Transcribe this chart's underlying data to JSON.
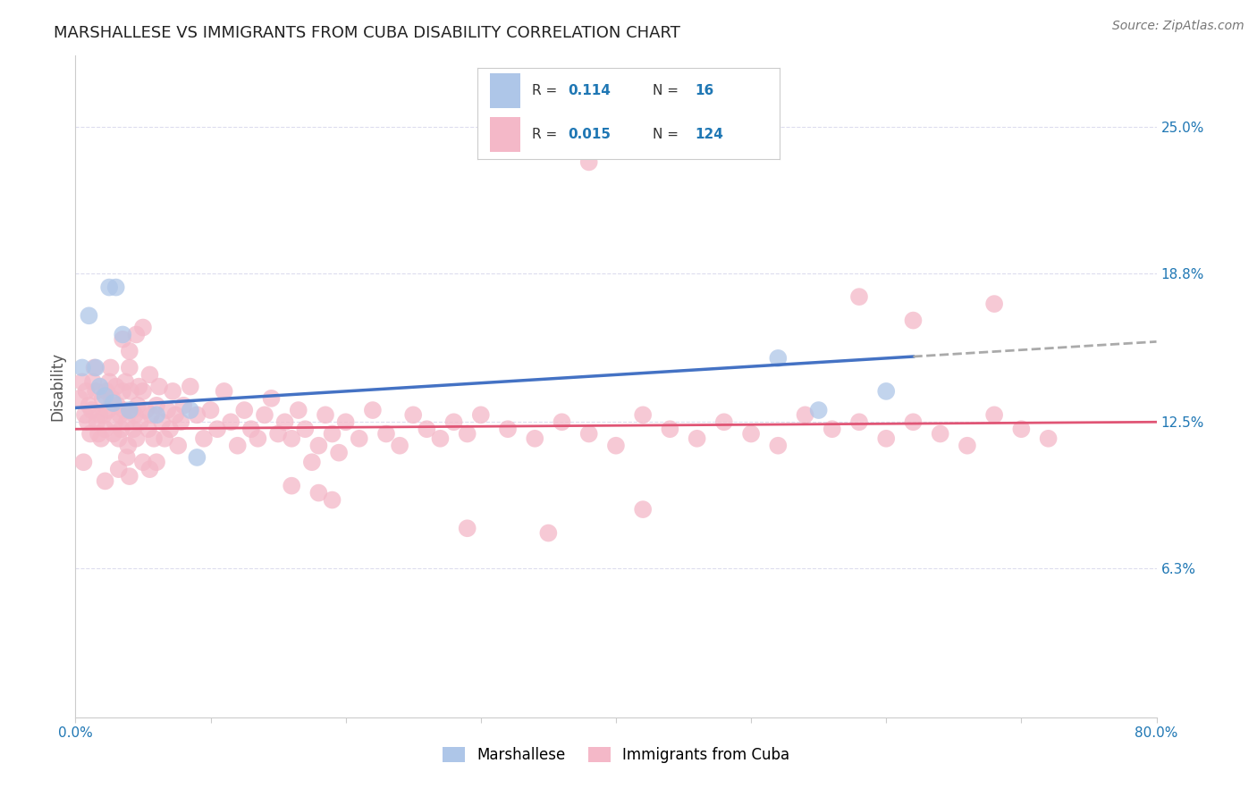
{
  "title": "MARSHALLESE VS IMMIGRANTS FROM CUBA DISABILITY CORRELATION CHART",
  "source": "Source: ZipAtlas.com",
  "ylabel": "Disability",
  "xlim": [
    0.0,
    0.8
  ],
  "ylim": [
    0.0,
    0.28
  ],
  "xticks": [
    0.0,
    0.1,
    0.2,
    0.3,
    0.4,
    0.5,
    0.6,
    0.7,
    0.8
  ],
  "ytick_positions": [
    0.063,
    0.125,
    0.188,
    0.25
  ],
  "ytick_labels": [
    "6.3%",
    "12.5%",
    "18.8%",
    "25.0%"
  ],
  "grid_color": "#ddddee",
  "background_color": "#ffffff",
  "marshallese_color": "#aec6e8",
  "cuba_color": "#f4b8c8",
  "blue_line_color": "#4472c4",
  "pink_line_color": "#e05575",
  "dash_line_color": "#aaaaaa",
  "accent_color": "#1f77b4",
  "marshallese_points": [
    [
      0.01,
      0.17
    ],
    [
      0.025,
      0.182
    ],
    [
      0.03,
      0.182
    ],
    [
      0.035,
      0.162
    ],
    [
      0.005,
      0.148
    ],
    [
      0.015,
      0.148
    ],
    [
      0.018,
      0.14
    ],
    [
      0.022,
      0.136
    ],
    [
      0.028,
      0.133
    ],
    [
      0.04,
      0.13
    ],
    [
      0.06,
      0.128
    ],
    [
      0.085,
      0.13
    ],
    [
      0.09,
      0.11
    ],
    [
      0.52,
      0.152
    ],
    [
      0.6,
      0.138
    ],
    [
      0.55,
      0.13
    ]
  ],
  "cuba_points": [
    [
      0.003,
      0.135
    ],
    [
      0.005,
      0.142
    ],
    [
      0.007,
      0.128
    ],
    [
      0.008,
      0.138
    ],
    [
      0.009,
      0.125
    ],
    [
      0.01,
      0.132
    ],
    [
      0.011,
      0.12
    ],
    [
      0.012,
      0.13
    ],
    [
      0.013,
      0.142
    ],
    [
      0.014,
      0.148
    ],
    [
      0.015,
      0.138
    ],
    [
      0.016,
      0.125
    ],
    [
      0.017,
      0.12
    ],
    [
      0.018,
      0.128
    ],
    [
      0.019,
      0.118
    ],
    [
      0.02,
      0.135
    ],
    [
      0.021,
      0.128
    ],
    [
      0.022,
      0.122
    ],
    [
      0.023,
      0.138
    ],
    [
      0.024,
      0.13
    ],
    [
      0.025,
      0.142
    ],
    [
      0.026,
      0.148
    ],
    [
      0.027,
      0.135
    ],
    [
      0.028,
      0.12
    ],
    [
      0.029,
      0.125
    ],
    [
      0.03,
      0.14
    ],
    [
      0.031,
      0.132
    ],
    [
      0.032,
      0.118
    ],
    [
      0.033,
      0.128
    ],
    [
      0.034,
      0.122
    ],
    [
      0.035,
      0.138
    ],
    [
      0.036,
      0.13
    ],
    [
      0.037,
      0.142
    ],
    [
      0.038,
      0.125
    ],
    [
      0.039,
      0.115
    ],
    [
      0.04,
      0.148
    ],
    [
      0.041,
      0.138
    ],
    [
      0.042,
      0.13
    ],
    [
      0.043,
      0.122
    ],
    [
      0.044,
      0.128
    ],
    [
      0.045,
      0.118
    ],
    [
      0.046,
      0.132
    ],
    [
      0.047,
      0.14
    ],
    [
      0.048,
      0.125
    ],
    [
      0.05,
      0.138
    ],
    [
      0.052,
      0.13
    ],
    [
      0.054,
      0.122
    ],
    [
      0.055,
      0.145
    ],
    [
      0.056,
      0.128
    ],
    [
      0.058,
      0.118
    ],
    [
      0.06,
      0.132
    ],
    [
      0.062,
      0.14
    ],
    [
      0.064,
      0.125
    ],
    [
      0.066,
      0.118
    ],
    [
      0.068,
      0.13
    ],
    [
      0.07,
      0.122
    ],
    [
      0.072,
      0.138
    ],
    [
      0.074,
      0.128
    ],
    [
      0.076,
      0.115
    ],
    [
      0.078,
      0.125
    ],
    [
      0.08,
      0.132
    ],
    [
      0.085,
      0.14
    ],
    [
      0.09,
      0.128
    ],
    [
      0.095,
      0.118
    ],
    [
      0.1,
      0.13
    ],
    [
      0.105,
      0.122
    ],
    [
      0.11,
      0.138
    ],
    [
      0.115,
      0.125
    ],
    [
      0.12,
      0.115
    ],
    [
      0.125,
      0.13
    ],
    [
      0.13,
      0.122
    ],
    [
      0.135,
      0.118
    ],
    [
      0.14,
      0.128
    ],
    [
      0.145,
      0.135
    ],
    [
      0.15,
      0.12
    ],
    [
      0.155,
      0.125
    ],
    [
      0.16,
      0.118
    ],
    [
      0.165,
      0.13
    ],
    [
      0.17,
      0.122
    ],
    [
      0.175,
      0.108
    ],
    [
      0.18,
      0.115
    ],
    [
      0.185,
      0.128
    ],
    [
      0.19,
      0.12
    ],
    [
      0.195,
      0.112
    ],
    [
      0.2,
      0.125
    ],
    [
      0.21,
      0.118
    ],
    [
      0.22,
      0.13
    ],
    [
      0.23,
      0.12
    ],
    [
      0.24,
      0.115
    ],
    [
      0.25,
      0.128
    ],
    [
      0.26,
      0.122
    ],
    [
      0.27,
      0.118
    ],
    [
      0.28,
      0.125
    ],
    [
      0.29,
      0.12
    ],
    [
      0.3,
      0.128
    ],
    [
      0.32,
      0.122
    ],
    [
      0.34,
      0.118
    ],
    [
      0.36,
      0.125
    ],
    [
      0.38,
      0.12
    ],
    [
      0.4,
      0.115
    ],
    [
      0.42,
      0.128
    ],
    [
      0.44,
      0.122
    ],
    [
      0.46,
      0.118
    ],
    [
      0.48,
      0.125
    ],
    [
      0.5,
      0.12
    ],
    [
      0.52,
      0.115
    ],
    [
      0.54,
      0.128
    ],
    [
      0.56,
      0.122
    ],
    [
      0.58,
      0.125
    ],
    [
      0.6,
      0.118
    ],
    [
      0.62,
      0.125
    ],
    [
      0.64,
      0.12
    ],
    [
      0.66,
      0.115
    ],
    [
      0.68,
      0.128
    ],
    [
      0.7,
      0.122
    ],
    [
      0.72,
      0.118
    ],
    [
      0.006,
      0.108
    ],
    [
      0.032,
      0.105
    ],
    [
      0.038,
      0.11
    ],
    [
      0.05,
      0.108
    ],
    [
      0.055,
      0.105
    ],
    [
      0.06,
      0.108
    ],
    [
      0.035,
      0.16
    ],
    [
      0.04,
      0.155
    ],
    [
      0.045,
      0.162
    ],
    [
      0.05,
      0.165
    ],
    [
      0.38,
      0.235
    ],
    [
      0.29,
      0.08
    ],
    [
      0.35,
      0.078
    ],
    [
      0.42,
      0.088
    ],
    [
      0.16,
      0.098
    ],
    [
      0.18,
      0.095
    ],
    [
      0.19,
      0.092
    ],
    [
      0.58,
      0.178
    ],
    [
      0.62,
      0.168
    ],
    [
      0.68,
      0.175
    ],
    [
      0.022,
      0.1
    ],
    [
      0.04,
      0.102
    ]
  ]
}
